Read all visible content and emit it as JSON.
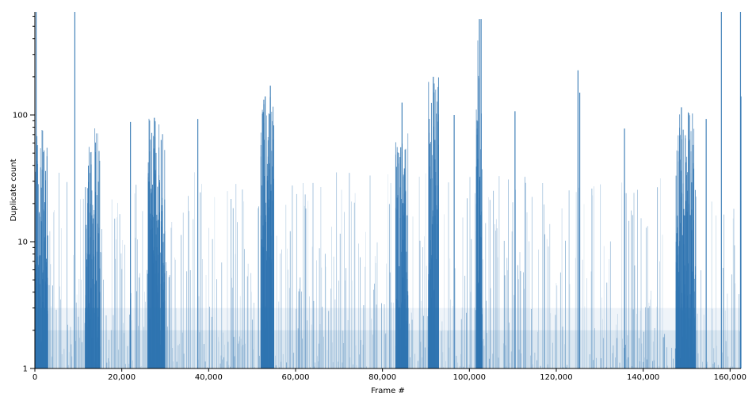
{
  "chart_data": {
    "type": "bar",
    "title": "",
    "xlabel": "Frame #",
    "ylabel": "Duplicate count",
    "x_scale": "linear",
    "y_scale": "log",
    "xlim": [
      0,
      162500
    ],
    "ylim": [
      1,
      650
    ],
    "x_ticks": [
      0,
      20000,
      40000,
      60000,
      80000,
      100000,
      120000,
      140000,
      160000
    ],
    "x_tick_labels": [
      "0",
      "20,000",
      "40,000",
      "60,000",
      "80,000",
      "100,000",
      "120,000",
      "140,000",
      "160,000"
    ],
    "y_ticks": [
      1,
      10,
      100
    ],
    "y_tick_labels": [
      "1",
      "10",
      "100"
    ],
    "color": "#2f74b1",
    "grid": false,
    "legend": "none",
    "dense_regions": [
      {
        "x_from": 0,
        "x_to": 3000,
        "typical_max": 80
      },
      {
        "x_from": 11500,
        "x_to": 15000,
        "typical_max": 85
      },
      {
        "x_from": 26000,
        "x_to": 30000,
        "typical_max": 95
      },
      {
        "x_from": 52000,
        "x_to": 55000,
        "typical_max": 140
      },
      {
        "x_from": 83000,
        "x_to": 86000,
        "typical_max": 75
      },
      {
        "x_from": 90500,
        "x_to": 93000,
        "typical_max": 200
      },
      {
        "x_from": 101500,
        "x_to": 103000,
        "typical_max": 400
      },
      {
        "x_from": 147500,
        "x_to": 152000,
        "typical_max": 110
      }
    ],
    "peaks": [
      {
        "x": 300,
        "y": 650
      },
      {
        "x": 9200,
        "y": 650
      },
      {
        "x": 22000,
        "y": 88
      },
      {
        "x": 27500,
        "y": 95
      },
      {
        "x": 37500,
        "y": 93
      },
      {
        "x": 53000,
        "y": 140
      },
      {
        "x": 54200,
        "y": 170
      },
      {
        "x": 84500,
        "y": 125
      },
      {
        "x": 91700,
        "y": 200
      },
      {
        "x": 96500,
        "y": 100
      },
      {
        "x": 102300,
        "y": 570
      },
      {
        "x": 102700,
        "y": 570
      },
      {
        "x": 110500,
        "y": 107
      },
      {
        "x": 125000,
        "y": 225
      },
      {
        "x": 125400,
        "y": 150
      },
      {
        "x": 135700,
        "y": 78
      },
      {
        "x": 148800,
        "y": 115
      },
      {
        "x": 154500,
        "y": 93
      },
      {
        "x": 158000,
        "y": 650
      },
      {
        "x": 162400,
        "y": 650
      },
      {
        "x": 162500,
        "y": 140
      }
    ]
  }
}
